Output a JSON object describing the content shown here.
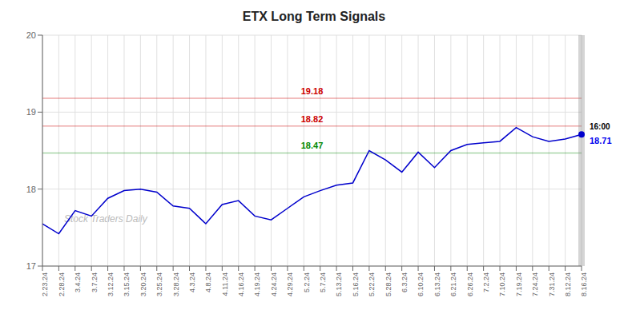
{
  "chart_data": {
    "type": "line",
    "title": "ETX Long Term Signals",
    "categories": [
      "2.23.24",
      "2.28.24",
      "3.4.24",
      "3.7.24",
      "3.12.24",
      "3.15.24",
      "3.20.24",
      "3.25.24",
      "3.28.24",
      "4.3.24",
      "4.8.24",
      "4.11.24",
      "4.16.24",
      "4.19.24",
      "4.24.24",
      "4.29.24",
      "5.2.24",
      "5.7.24",
      "5.13.24",
      "5.16.24",
      "5.22.24",
      "5.28.24",
      "6.3.24",
      "6.10.24",
      "6.13.24",
      "6.21.24",
      "6.26.24",
      "7.2.24",
      "7.10.24",
      "7.19.24",
      "7.24.24",
      "7.31.24",
      "8.12.24",
      "8.16.24"
    ],
    "values": [
      17.55,
      17.42,
      17.72,
      17.65,
      17.88,
      17.98,
      18.0,
      17.96,
      17.78,
      17.75,
      17.55,
      17.8,
      17.85,
      17.65,
      17.6,
      17.75,
      17.9,
      17.98,
      18.05,
      18.08,
      18.5,
      18.38,
      18.22,
      18.48,
      18.28,
      18.5,
      18.58,
      18.6,
      18.62,
      18.8,
      18.68,
      18.62,
      18.65,
      18.71
    ],
    "color": "#0000cc",
    "marker": "o",
    "ylim": [
      17.0,
      20.0
    ],
    "yticks": [
      17,
      18,
      19,
      20
    ],
    "grid": true,
    "hlines": [
      {
        "value": 19.18,
        "label": "19.18",
        "color": "#cc0000"
      },
      {
        "value": 18.82,
        "label": "18.82",
        "color": "#cc0000"
      },
      {
        "value": 18.47,
        "label": "18.47",
        "color": "#008800"
      }
    ],
    "annotations": [
      {
        "text": "16:00",
        "color": "#000000"
      },
      {
        "text": "18.71",
        "color": "#0000ee"
      },
      {
        "text": "Stock Traders Daily",
        "color": "#bbbbbb"
      }
    ]
  }
}
